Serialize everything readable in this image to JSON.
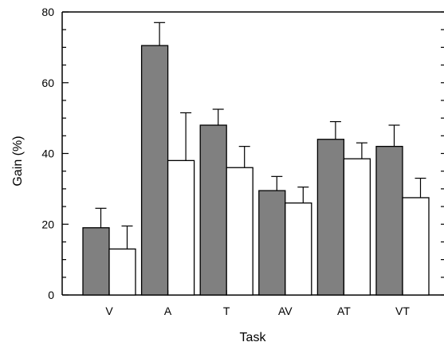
{
  "chart_data": {
    "type": "bar",
    "title": "",
    "xlabel": "Task",
    "ylabel": "Gain (%)",
    "ylim": [
      0,
      80
    ],
    "yticks": [
      0,
      20,
      40,
      60,
      80
    ],
    "categories": [
      "V",
      "A",
      "T",
      "AV",
      "AT",
      "VT"
    ],
    "series": [
      {
        "color": "#808080",
        "values": [
          19,
          70.5,
          48,
          29.5,
          44,
          42
        ],
        "errors": [
          5.5,
          6.5,
          4.5,
          4.0,
          5.0,
          6.0
        ]
      },
      {
        "color": "#ffffff",
        "values": [
          13,
          38,
          36,
          26,
          38.5,
          27.5
        ],
        "errors": [
          6.5,
          13.5,
          6.0,
          4.5,
          4.5,
          5.5
        ]
      }
    ],
    "grid": false,
    "legend": "none"
  }
}
